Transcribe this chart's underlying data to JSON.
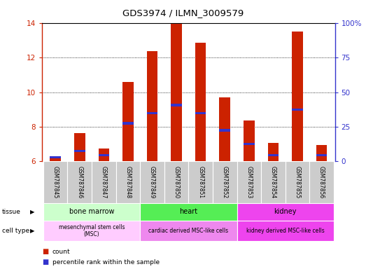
{
  "title": "GDS3974 / ILMN_3009579",
  "samples": [
    "GSM787845",
    "GSM787846",
    "GSM787847",
    "GSM787848",
    "GSM787849",
    "GSM787850",
    "GSM787851",
    "GSM787852",
    "GSM787853",
    "GSM787854",
    "GSM787855",
    "GSM787856"
  ],
  "count_values": [
    6.2,
    7.65,
    6.75,
    10.6,
    12.35,
    13.95,
    12.85,
    9.7,
    8.35,
    7.05,
    13.5,
    6.95
  ],
  "percentile_values": [
    6.25,
    6.6,
    6.35,
    8.2,
    8.8,
    9.25,
    8.8,
    7.8,
    7.0,
    6.35,
    9.0,
    6.35
  ],
  "ymin": 6,
  "ymax": 14,
  "yticks": [
    6,
    8,
    10,
    12,
    14
  ],
  "right_yticks": [
    0,
    25,
    50,
    75,
    100
  ],
  "bar_color": "#cc2200",
  "percentile_color": "#3333cc",
  "tissue_groups": [
    {
      "label": "bone marrow",
      "start": 0,
      "end": 3,
      "color": "#ccffcc"
    },
    {
      "label": "heart",
      "start": 4,
      "end": 7,
      "color": "#55ee55"
    },
    {
      "label": "kidney",
      "start": 8,
      "end": 11,
      "color": "#ee44ee"
    }
  ],
  "cell_type_groups": [
    {
      "label": "mesenchymal stem cells\n(MSC)",
      "start": 0,
      "end": 3,
      "color": "#ffccff"
    },
    {
      "label": "cardiac derived MSC-like cells",
      "start": 4,
      "end": 7,
      "color": "#ee88ee"
    },
    {
      "label": "kidney derived MSC-like cells",
      "start": 8,
      "end": 11,
      "color": "#ee44ee"
    }
  ],
  "sample_bg_color": "#cccccc",
  "left_axis_color": "#cc2200",
  "right_axis_color": "#3333cc",
  "bg_color": "#ffffff"
}
